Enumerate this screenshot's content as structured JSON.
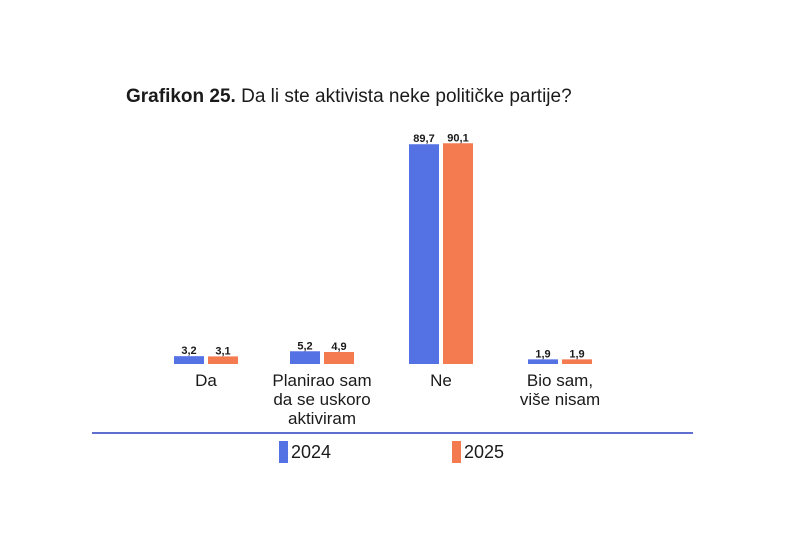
{
  "title": {
    "prefix": "Grafikon 25.",
    "text": "Da li ste aktivista neke političke partije?"
  },
  "chart_data": {
    "type": "bar",
    "title": "Grafikon 25. Da li ste aktivista neke političke partije?",
    "categories": [
      "Da",
      "Planirao sam da se uskoro aktiviram",
      "Ne",
      "Bio sam, više nisam"
    ],
    "category_lines": [
      [
        "Da"
      ],
      [
        "Planirao sam",
        "da se uskoro",
        "aktiviram"
      ],
      [
        "Ne"
      ],
      [
        "Bio sam,",
        "više nisam"
      ]
    ],
    "series": [
      {
        "name": "2024",
        "values": [
          3.2,
          5.2,
          89.7,
          1.9
        ],
        "labels": [
          "3,2",
          "5,2",
          "89,7",
          "1,9"
        ],
        "color": "#5572e5"
      },
      {
        "name": "2025",
        "values": [
          3.1,
          4.9,
          90.1,
          1.9
        ],
        "labels": [
          "3,1",
          "4,9",
          "90,1",
          "1,9"
        ],
        "color": "#f47b4f"
      }
    ],
    "ylim": [
      0,
      100
    ],
    "legend_position": "bottom",
    "grid": false
  },
  "colors": {
    "axis": "#5f6fd0",
    "text": "#1a1a1a"
  }
}
